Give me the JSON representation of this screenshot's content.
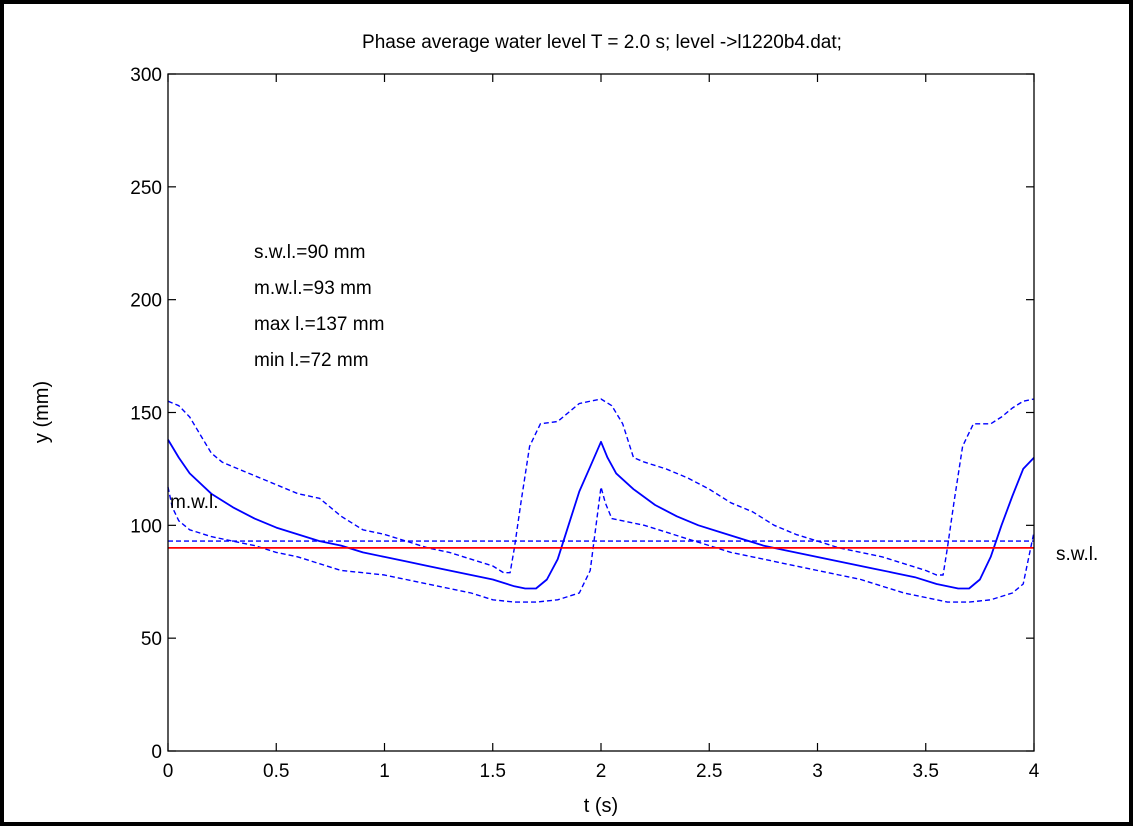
{
  "chart_data": {
    "type": "line",
    "title": "Phase average water level T = 2.0 s;  level ->l1220b4.dat;",
    "xlabel": "t (s)",
    "ylabel": "y (mm)",
    "xlim": [
      0,
      4
    ],
    "ylim": [
      0,
      300
    ],
    "xticks": [
      0,
      0.5,
      1,
      1.5,
      2,
      2.5,
      3,
      3.5,
      4
    ],
    "xtick_labels": [
      "0",
      "0.5",
      "1",
      "1.5",
      "2",
      "2.5",
      "3",
      "3.5",
      "4"
    ],
    "yticks": [
      0,
      50,
      100,
      150,
      200,
      250,
      300
    ],
    "ytick_labels": [
      "0",
      "50",
      "100",
      "150",
      "200",
      "250",
      "300"
    ],
    "grid": false,
    "legend": "none",
    "annotations": {
      "stats": [
        "s.w.l.=90 mm",
        "m.w.l.=93 mm",
        "max l.=137 mm",
        "min l.=72 mm"
      ],
      "mwl_label": "m.w.l.",
      "swl_label": "s.w.l."
    },
    "series": [
      {
        "role": "mean",
        "style": "solid",
        "color": "#0000ff",
        "points": [
          [
            0,
            138
          ],
          [
            0.05,
            130
          ],
          [
            0.1,
            123
          ],
          [
            0.2,
            114
          ],
          [
            0.3,
            108
          ],
          [
            0.4,
            103
          ],
          [
            0.5,
            99
          ],
          [
            0.6,
            96
          ],
          [
            0.7,
            93
          ],
          [
            0.8,
            91
          ],
          [
            0.9,
            88
          ],
          [
            1.0,
            86
          ],
          [
            1.1,
            84
          ],
          [
            1.2,
            82
          ],
          [
            1.3,
            80
          ],
          [
            1.4,
            78
          ],
          [
            1.5,
            76
          ],
          [
            1.6,
            73
          ],
          [
            1.65,
            72
          ],
          [
            1.7,
            72
          ],
          [
            1.75,
            76
          ],
          [
            1.8,
            85
          ],
          [
            1.85,
            100
          ],
          [
            1.9,
            115
          ],
          [
            1.95,
            126
          ],
          [
            2.0,
            137
          ],
          [
            2.03,
            130
          ],
          [
            2.07,
            123
          ],
          [
            2.15,
            116
          ],
          [
            2.25,
            109
          ],
          [
            2.35,
            104
          ],
          [
            2.45,
            100
          ],
          [
            2.55,
            97
          ],
          [
            2.65,
            94
          ],
          [
            2.75,
            91
          ],
          [
            2.85,
            89
          ],
          [
            2.95,
            87
          ],
          [
            3.05,
            85
          ],
          [
            3.15,
            83
          ],
          [
            3.25,
            81
          ],
          [
            3.35,
            79
          ],
          [
            3.45,
            77
          ],
          [
            3.55,
            74
          ],
          [
            3.65,
            72
          ],
          [
            3.7,
            72
          ],
          [
            3.75,
            76
          ],
          [
            3.8,
            86
          ],
          [
            3.85,
            100
          ],
          [
            3.9,
            113
          ],
          [
            3.95,
            125
          ],
          [
            4.0,
            130
          ]
        ]
      },
      {
        "role": "upper envelope",
        "style": "dashed",
        "color": "#0000ff",
        "points": [
          [
            0,
            155
          ],
          [
            0.05,
            153
          ],
          [
            0.1,
            148
          ],
          [
            0.15,
            140
          ],
          [
            0.2,
            132
          ],
          [
            0.25,
            128
          ],
          [
            0.3,
            126
          ],
          [
            0.4,
            122
          ],
          [
            0.5,
            118
          ],
          [
            0.6,
            114
          ],
          [
            0.7,
            112
          ],
          [
            0.8,
            104
          ],
          [
            0.9,
            98
          ],
          [
            1.0,
            96
          ],
          [
            1.1,
            93
          ],
          [
            1.2,
            90
          ],
          [
            1.3,
            88
          ],
          [
            1.4,
            85
          ],
          [
            1.5,
            82
          ],
          [
            1.55,
            79
          ],
          [
            1.58,
            79
          ],
          [
            1.6,
            90
          ],
          [
            1.63,
            110
          ],
          [
            1.67,
            135
          ],
          [
            1.72,
            145
          ],
          [
            1.8,
            146
          ],
          [
            1.85,
            150
          ],
          [
            1.9,
            154
          ],
          [
            1.95,
            155
          ],
          [
            2.0,
            156
          ],
          [
            2.05,
            153
          ],
          [
            2.1,
            145
          ],
          [
            2.15,
            130
          ],
          [
            2.2,
            128
          ],
          [
            2.3,
            125
          ],
          [
            2.4,
            121
          ],
          [
            2.5,
            116
          ],
          [
            2.6,
            110
          ],
          [
            2.7,
            106
          ],
          [
            2.8,
            100
          ],
          [
            2.9,
            96
          ],
          [
            3.0,
            93
          ],
          [
            3.1,
            90
          ],
          [
            3.2,
            88
          ],
          [
            3.3,
            86
          ],
          [
            3.4,
            83
          ],
          [
            3.5,
            80
          ],
          [
            3.55,
            78
          ],
          [
            3.58,
            78
          ],
          [
            3.6,
            90
          ],
          [
            3.63,
            110
          ],
          [
            3.67,
            135
          ],
          [
            3.72,
            145
          ],
          [
            3.8,
            145
          ],
          [
            3.85,
            148
          ],
          [
            3.9,
            152
          ],
          [
            3.95,
            155
          ],
          [
            4.0,
            156
          ]
        ]
      },
      {
        "role": "lower envelope",
        "style": "dashed",
        "color": "#0000ff",
        "points": [
          [
            0,
            117
          ],
          [
            0.02,
            108
          ],
          [
            0.05,
            102
          ],
          [
            0.1,
            98
          ],
          [
            0.2,
            95
          ],
          [
            0.3,
            93
          ],
          [
            0.4,
            91
          ],
          [
            0.5,
            88
          ],
          [
            0.6,
            86
          ],
          [
            0.7,
            83
          ],
          [
            0.8,
            80
          ],
          [
            0.9,
            79
          ],
          [
            1.0,
            78
          ],
          [
            1.1,
            76
          ],
          [
            1.2,
            74
          ],
          [
            1.3,
            72
          ],
          [
            1.4,
            70
          ],
          [
            1.5,
            67
          ],
          [
            1.6,
            66
          ],
          [
            1.7,
            66
          ],
          [
            1.8,
            67
          ],
          [
            1.9,
            70
          ],
          [
            1.95,
            80
          ],
          [
            2.0,
            117
          ],
          [
            2.02,
            110
          ],
          [
            2.05,
            103
          ],
          [
            2.1,
            102
          ],
          [
            2.2,
            100
          ],
          [
            2.3,
            97
          ],
          [
            2.4,
            94
          ],
          [
            2.5,
            91
          ],
          [
            2.6,
            88
          ],
          [
            2.7,
            86
          ],
          [
            2.8,
            84
          ],
          [
            2.9,
            82
          ],
          [
            3.0,
            80
          ],
          [
            3.1,
            78
          ],
          [
            3.2,
            76
          ],
          [
            3.3,
            73
          ],
          [
            3.4,
            70
          ],
          [
            3.5,
            68
          ],
          [
            3.6,
            66
          ],
          [
            3.7,
            66
          ],
          [
            3.8,
            67
          ],
          [
            3.9,
            70
          ],
          [
            3.95,
            74
          ],
          [
            4.0,
            97
          ]
        ]
      },
      {
        "role": "m.w.l.",
        "style": "dashed",
        "color": "#0000ff",
        "points": [
          [
            0,
            93
          ],
          [
            4,
            93
          ]
        ]
      },
      {
        "role": "s.w.l.",
        "style": "solid",
        "color": "#ff0000",
        "points": [
          [
            0,
            90
          ],
          [
            4,
            90
          ]
        ]
      }
    ]
  }
}
